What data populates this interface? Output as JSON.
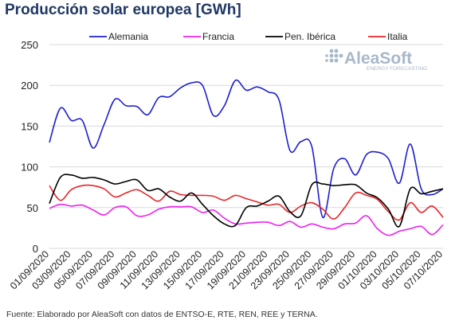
{
  "title": "Producción solar europea [GWh]",
  "source": "Fuente: Elaborado por AleaSoft con datos de ENTSO-E, RTE, REN, REE y TERNA.",
  "logo": {
    "name": "AleaSoft",
    "tagline": "ENERGY FORECASTING"
  },
  "colors": {
    "Alemania": "#1f1fd0",
    "Francia": "#ee22ee",
    "Pen. Ibérica": "#000000",
    "Italia": "#e8262a",
    "grid": "#d9d9d9",
    "title": "#1f3864",
    "logo": "#a8b8c8"
  },
  "chart_data": {
    "type": "line",
    "title": "Producción solar europea [GWh]",
    "xlabel": "",
    "ylabel": "",
    "ylim": [
      0,
      250
    ],
    "yticks": [
      0,
      50,
      100,
      150,
      200,
      250
    ],
    "grid": "horizontal",
    "legend": "top",
    "x": [
      "01/09/2020",
      "02/09/2020",
      "03/09/2020",
      "04/09/2020",
      "05/09/2020",
      "06/09/2020",
      "07/09/2020",
      "08/09/2020",
      "09/09/2020",
      "10/09/2020",
      "11/09/2020",
      "12/09/2020",
      "13/09/2020",
      "14/09/2020",
      "15/09/2020",
      "16/09/2020",
      "17/09/2020",
      "18/09/2020",
      "19/09/2020",
      "20/09/2020",
      "21/09/2020",
      "22/09/2020",
      "23/09/2020",
      "24/09/2020",
      "25/09/2020",
      "26/09/2020",
      "27/09/2020",
      "28/09/2020",
      "29/09/2020",
      "30/09/2020",
      "01/10/2020",
      "02/10/2020",
      "03/10/2020",
      "04/10/2020",
      "05/10/2020",
      "06/10/2020",
      "07/10/2020"
    ],
    "x_tick_labels": [
      "01/09/2020",
      "03/09/2020",
      "05/09/2020",
      "07/09/2020",
      "09/09/2020",
      "11/09/2020",
      "13/09/2020",
      "15/09/2020",
      "17/09/2020",
      "19/09/2020",
      "21/09/2020",
      "23/09/2020",
      "25/09/2020",
      "27/09/2020",
      "29/09/2020",
      "01/10/2020",
      "03/10/2020",
      "05/10/2020",
      "07/10/2020"
    ],
    "series": [
      {
        "name": "Alemania",
        "values": [
          130,
          172,
          157,
          157,
          123,
          152,
          183,
          175,
          174,
          164,
          185,
          186,
          197,
          203,
          200,
          163,
          175,
          206,
          194,
          198,
          192,
          182,
          120,
          131,
          125,
          38,
          98,
          110,
          90,
          115,
          118,
          110,
          80,
          128,
          73,
          66,
          73
        ]
      },
      {
        "name": "Francia",
        "values": [
          49,
          54,
          52,
          53,
          47,
          41,
          50,
          51,
          40,
          41,
          48,
          51,
          51,
          51,
          44,
          47,
          37,
          30,
          31,
          32,
          32,
          28,
          33,
          26,
          30,
          26,
          24,
          30,
          31,
          40,
          24,
          16,
          21,
          24,
          27,
          17,
          29
        ]
      },
      {
        "name": "Pen. Ibérica",
        "values": [
          55,
          87,
          90,
          86,
          87,
          84,
          79,
          82,
          84,
          71,
          73,
          63,
          58,
          68,
          54,
          40,
          30,
          28,
          50,
          52,
          58,
          64,
          45,
          40,
          78,
          79,
          77,
          78,
          78,
          68,
          62,
          48,
          27,
          73,
          67,
          70,
          73
        ]
      },
      {
        "name": "Italia",
        "values": [
          77,
          59,
          72,
          77,
          77,
          73,
          63,
          68,
          72,
          65,
          58,
          70,
          66,
          65,
          65,
          64,
          59,
          65,
          61,
          57,
          53,
          54,
          44,
          52,
          56,
          48,
          36,
          50,
          68,
          65,
          60,
          45,
          35,
          56,
          44,
          52,
          38
        ]
      }
    ]
  }
}
